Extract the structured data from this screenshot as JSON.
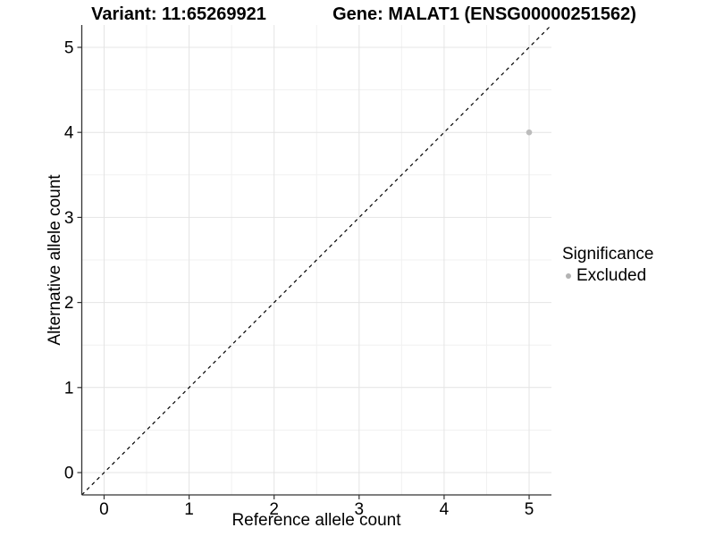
{
  "chart_data": {
    "type": "scatter",
    "titles": {
      "variant": "Variant: 11:65269921",
      "gene": "Gene: MALAT1 (ENSG00000251562)"
    },
    "xlabel": "Reference allele count",
    "ylabel": "Alternative allele count",
    "xlim": [
      -0.2625,
      5.2625
    ],
    "ylim": [
      -0.2625,
      5.2625
    ],
    "xticks": [
      0,
      1,
      2,
      3,
      4,
      5
    ],
    "yticks": [
      0,
      1,
      2,
      3,
      4,
      5
    ],
    "minor_xticks": [
      0.5,
      1.5,
      2.5,
      3.5,
      4.5
    ],
    "minor_yticks": [
      0.5,
      1.5,
      2.5,
      3.5,
      4.5
    ],
    "grid": "major-and-minor",
    "identity_line": {
      "intercept": 0,
      "slope": 1,
      "style": "dashed",
      "color": "#000000"
    },
    "points": [
      {
        "x": 5,
        "y": 4,
        "significance": "Excluded"
      }
    ],
    "legend": {
      "title": "Significance",
      "position": "right",
      "entries": [
        {
          "label": "Excluded",
          "marker": "circle",
          "color": "#b3b3b3"
        }
      ]
    },
    "colors": {
      "point": "#bcbcbc",
      "grid_major": "#e4e4e4",
      "grid_minor": "#f1f1f1",
      "axis": "#333333",
      "tick_label": "#000000",
      "background": "#ffffff"
    }
  }
}
